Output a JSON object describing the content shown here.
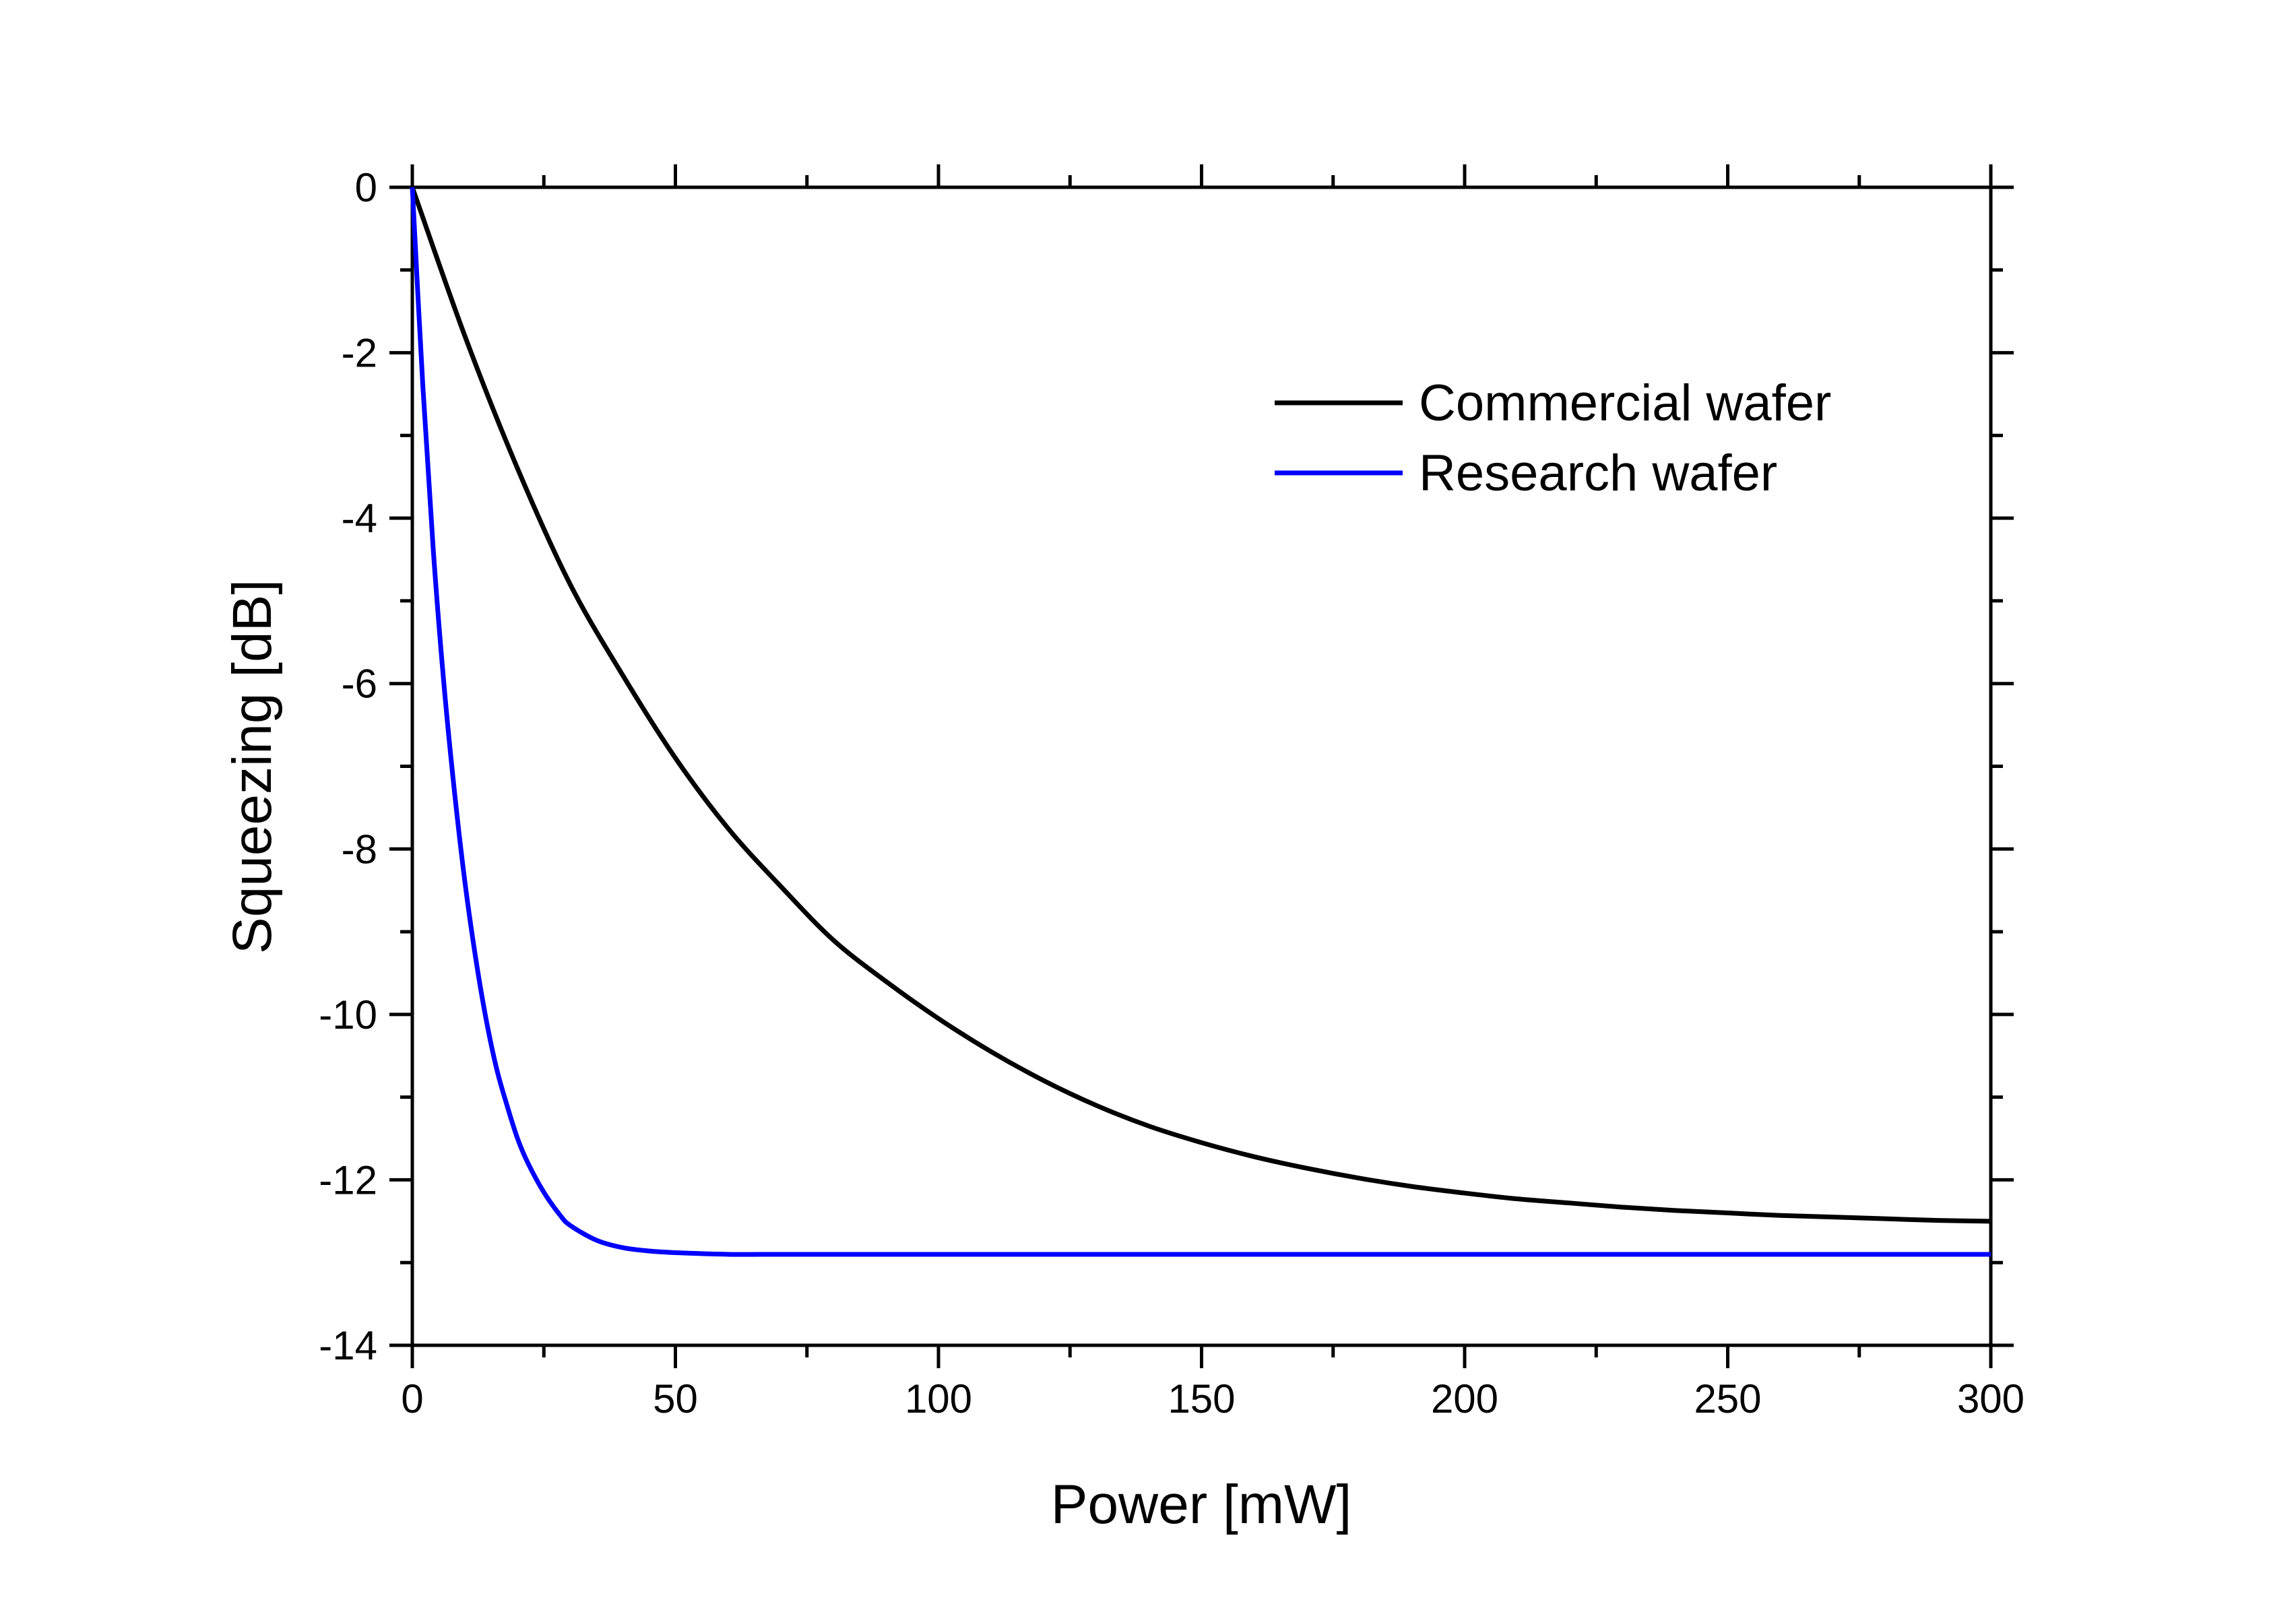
{
  "chart_data": {
    "type": "line",
    "title": "",
    "xlabel": "Power [mW]",
    "ylabel": "Squeezing [dB]",
    "xlim": [
      0,
      300
    ],
    "ylim": [
      -14,
      0
    ],
    "x_ticks": [
      0,
      50,
      100,
      150,
      200,
      250,
      300
    ],
    "x_tick_labels": [
      "0",
      "50",
      "100",
      "150",
      "200",
      "250",
      "300"
    ],
    "x_minor_step": 25,
    "y_ticks": [
      0,
      -2,
      -4,
      -6,
      -8,
      -10,
      -12,
      -14
    ],
    "y_tick_labels": [
      "0",
      "-2",
      "-4",
      "-6",
      "-8",
      "-10",
      "-12",
      "-14"
    ],
    "y_minor_step": 1,
    "grid": false,
    "legend_position": "top-right",
    "series": [
      {
        "name": "Commercial wafer",
        "color": "#000000",
        "x": [
          0,
          10,
          20,
          30,
          40,
          50,
          60,
          70,
          80,
          90,
          100,
          110,
          120,
          130,
          140,
          150,
          160,
          170,
          180,
          190,
          200,
          210,
          220,
          230,
          240,
          250,
          260,
          270,
          280,
          290,
          300
        ],
        "y": [
          0,
          -1.8,
          -3.4,
          -4.8,
          -5.9,
          -6.9,
          -7.75,
          -8.45,
          -9.1,
          -9.6,
          -10.05,
          -10.45,
          -10.8,
          -11.1,
          -11.35,
          -11.55,
          -11.72,
          -11.86,
          -11.98,
          -12.08,
          -12.16,
          -12.23,
          -12.28,
          -12.33,
          -12.37,
          -12.4,
          -12.43,
          -12.45,
          -12.47,
          -12.49,
          -12.5
        ]
      },
      {
        "name": "Research wafer",
        "color": "#0000ff",
        "x": [
          0,
          2,
          4,
          6,
          8,
          10,
          12,
          14,
          16,
          18,
          20,
          22,
          25,
          28,
          30,
          35,
          40,
          45,
          50,
          60,
          70,
          80,
          90,
          100,
          150,
          200,
          250,
          300
        ],
        "y": [
          0,
          -2.4,
          -4.4,
          -6.0,
          -7.3,
          -8.4,
          -9.3,
          -10.05,
          -10.65,
          -11.1,
          -11.5,
          -11.8,
          -12.15,
          -12.42,
          -12.55,
          -12.73,
          -12.82,
          -12.86,
          -12.88,
          -12.9,
          -12.9,
          -12.9,
          -12.9,
          -12.9,
          -12.9,
          -12.9,
          -12.9,
          -12.9
        ]
      }
    ]
  }
}
